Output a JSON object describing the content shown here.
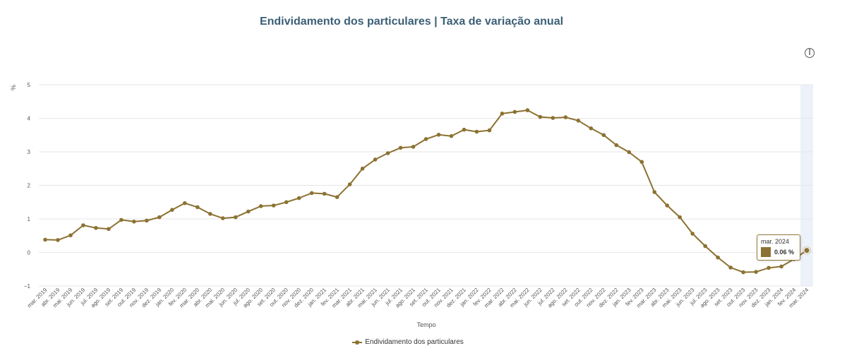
{
  "chart_data": {
    "type": "line",
    "title": "Endividamento dos particulares | Taxa de variação anual",
    "xlabel": "Tempo",
    "ylabel": "%",
    "ylim": [
      -1,
      5
    ],
    "yticks": [
      "−1",
      "0",
      "1",
      "2",
      "3",
      "4",
      "5"
    ],
    "grid": true,
    "legend_position": "bottom-center",
    "categories": [
      "mar. 2019",
      "abr. 2019",
      "mai. 2019",
      "jun. 2019",
      "jul. 2019",
      "ago. 2019",
      "set. 2019",
      "out. 2019",
      "nov. 2019",
      "dez. 2019",
      "jan. 2020",
      "fev. 2020",
      "mar. 2020",
      "abr. 2020",
      "mai. 2020",
      "jun. 2020",
      "jul. 2020",
      "ago. 2020",
      "set. 2020",
      "out. 2020",
      "nov. 2020",
      "dez. 2020",
      "jan. 2021",
      "fev. 2021",
      "mar. 2021",
      "abr. 2021",
      "mai. 2021",
      "jun. 2021",
      "jul. 2021",
      "ago. 2021",
      "set. 2021",
      "out. 2021",
      "nov. 2021",
      "dez. 2021",
      "jan. 2022",
      "fev. 2022",
      "mar. 2022",
      "abr. 2022",
      "mai. 2022",
      "jun. 2022",
      "jul. 2022",
      "ago. 2022",
      "set. 2022",
      "out. 2022",
      "nov. 2022",
      "dez. 2022",
      "jan. 2023",
      "fev. 2023",
      "mar. 2023",
      "abr. 2023",
      "mai. 2023",
      "jun. 2023",
      "jul. 2023",
      "ago. 2023",
      "set. 2023",
      "out. 2023",
      "nov. 2023",
      "dez. 2023",
      "jan. 2024",
      "fev. 2024",
      "mar. 2024"
    ],
    "series": [
      {
        "name": "Endividamento dos particulares",
        "color": "#8c7232",
        "values": [
          0.38,
          0.37,
          0.51,
          0.81,
          0.73,
          0.7,
          0.97,
          0.92,
          0.95,
          1.05,
          1.27,
          1.47,
          1.35,
          1.15,
          1.02,
          1.05,
          1.22,
          1.38,
          1.4,
          1.5,
          1.62,
          1.77,
          1.75,
          1.65,
          2.03,
          2.5,
          2.77,
          2.96,
          3.12,
          3.15,
          3.38,
          3.51,
          3.47,
          3.66,
          3.6,
          3.64,
          4.14,
          4.19,
          4.24,
          4.04,
          4.01,
          4.03,
          3.93,
          3.7,
          3.5,
          3.2,
          2.99,
          2.7,
          1.8,
          1.4,
          1.05,
          0.56,
          0.19,
          -0.15,
          -0.45,
          -0.59,
          -0.58,
          -0.46,
          -0.42,
          -0.2,
          0.06
        ]
      }
    ],
    "highlighted_category": "mar. 2024"
  },
  "tooltip": {
    "date": "mar. 2024",
    "value": "0.06 %"
  },
  "menu_icon": "context-menu-icon"
}
